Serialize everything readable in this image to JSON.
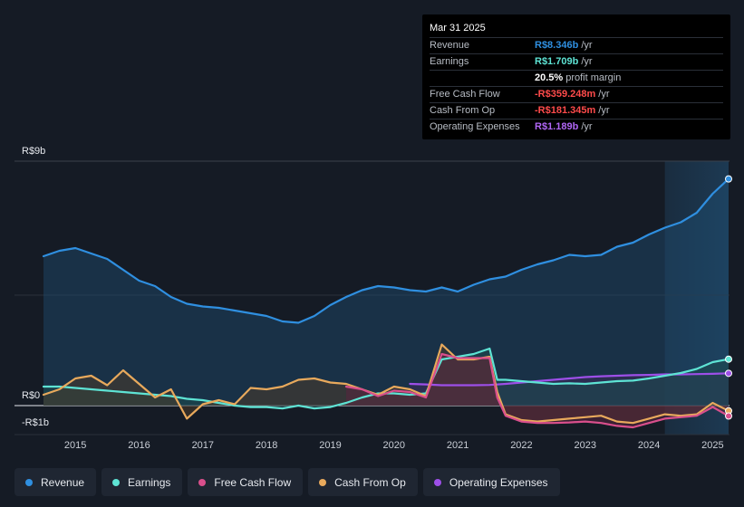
{
  "tooltip": {
    "date": "Mar 31 2025",
    "rows": [
      {
        "label": "Revenue",
        "value": "R$8.346b",
        "unit": "/yr",
        "color": "#2f8fe0"
      },
      {
        "label": "Earnings",
        "value": "R$1.709b",
        "unit": "/yr",
        "color": "#5ee3d4"
      },
      {
        "label": "",
        "value": "20.5%",
        "unit": "profit margin",
        "color": "#ffffff"
      },
      {
        "label": "Free Cash Flow",
        "value": "-R$359.248m",
        "unit": "/yr",
        "color": "#ff4b4b"
      },
      {
        "label": "Cash From Op",
        "value": "-R$181.345m",
        "unit": "/yr",
        "color": "#ff4b4b"
      },
      {
        "label": "Operating Expenses",
        "value": "R$1.189b",
        "unit": "/yr",
        "color": "#b066f5"
      }
    ]
  },
  "legend": [
    {
      "label": "Revenue",
      "color": "#2f8fe0"
    },
    {
      "label": "Earnings",
      "color": "#5ee3d4"
    },
    {
      "label": "Free Cash Flow",
      "color": "#d94f8c"
    },
    {
      "label": "Cash From Op",
      "color": "#e8a95c"
    },
    {
      "label": "Operating Expenses",
      "color": "#9d4fe8"
    }
  ],
  "chart_data": {
    "type": "line",
    "title": "",
    "xlabel": "",
    "ylabel": "",
    "ylim": [
      -1,
      9
    ],
    "ytick_labels": [
      {
        "value": 9,
        "label": "R$9b"
      },
      {
        "value": 0,
        "label": "R$0"
      },
      {
        "value": -1,
        "label": "-R$1b"
      }
    ],
    "xlim": [
      2014.5,
      2025.25
    ],
    "xtick_labels": [
      "2015",
      "2016",
      "2017",
      "2018",
      "2019",
      "2020",
      "2021",
      "2022",
      "2023",
      "2024",
      "2025"
    ],
    "xticks": [
      2015,
      2016,
      2017,
      2018,
      2019,
      2020,
      2021,
      2022,
      2023,
      2024,
      2025
    ],
    "highlight_start": 2024.25,
    "series": [
      {
        "name": "Revenue",
        "color": "#2f8fe0",
        "fill": "#1f4d70",
        "points": [
          [
            2014.5,
            5.5
          ],
          [
            2014.75,
            5.7
          ],
          [
            2015.0,
            5.8
          ],
          [
            2015.25,
            5.6
          ],
          [
            2015.5,
            5.4
          ],
          [
            2015.75,
            5.0
          ],
          [
            2016.0,
            4.6
          ],
          [
            2016.25,
            4.4
          ],
          [
            2016.5,
            4.0
          ],
          [
            2016.75,
            3.75
          ],
          [
            2017.0,
            3.65
          ],
          [
            2017.25,
            3.6
          ],
          [
            2017.5,
            3.5
          ],
          [
            2017.75,
            3.4
          ],
          [
            2018.0,
            3.3
          ],
          [
            2018.25,
            3.1
          ],
          [
            2018.5,
            3.05
          ],
          [
            2018.75,
            3.3
          ],
          [
            2019.0,
            3.7
          ],
          [
            2019.25,
            4.0
          ],
          [
            2019.5,
            4.25
          ],
          [
            2019.75,
            4.4
          ],
          [
            2020.0,
            4.35
          ],
          [
            2020.25,
            4.25
          ],
          [
            2020.5,
            4.2
          ],
          [
            2020.75,
            4.35
          ],
          [
            2021.0,
            4.2
          ],
          [
            2021.25,
            4.45
          ],
          [
            2021.5,
            4.65
          ],
          [
            2021.75,
            4.75
          ],
          [
            2022.0,
            5.0
          ],
          [
            2022.25,
            5.2
          ],
          [
            2022.5,
            5.35
          ],
          [
            2022.75,
            5.55
          ],
          [
            2023.0,
            5.5
          ],
          [
            2023.25,
            5.55
          ],
          [
            2023.5,
            5.85
          ],
          [
            2023.75,
            6.0
          ],
          [
            2024.0,
            6.3
          ],
          [
            2024.25,
            6.55
          ],
          [
            2024.5,
            6.75
          ],
          [
            2024.75,
            7.1
          ],
          [
            2025.0,
            7.8
          ],
          [
            2025.25,
            8.346
          ]
        ]
      },
      {
        "name": "Earnings",
        "color": "#5ee3d4",
        "fill": "#1c4a4c",
        "points": [
          [
            2014.5,
            0.7
          ],
          [
            2014.75,
            0.7
          ],
          [
            2015.0,
            0.65
          ],
          [
            2015.25,
            0.6
          ],
          [
            2015.5,
            0.55
          ],
          [
            2015.75,
            0.5
          ],
          [
            2016.0,
            0.45
          ],
          [
            2016.25,
            0.4
          ],
          [
            2016.5,
            0.35
          ],
          [
            2016.75,
            0.25
          ],
          [
            2017.0,
            0.2
          ],
          [
            2017.25,
            0.1
          ],
          [
            2017.5,
            0.0
          ],
          [
            2017.75,
            -0.05
          ],
          [
            2018.0,
            -0.05
          ],
          [
            2018.25,
            -0.1
          ],
          [
            2018.5,
            0.0
          ],
          [
            2018.75,
            -0.1
          ],
          [
            2019.0,
            -0.05
          ],
          [
            2019.25,
            0.1
          ],
          [
            2019.5,
            0.3
          ],
          [
            2019.75,
            0.45
          ],
          [
            2020.0,
            0.45
          ],
          [
            2020.25,
            0.4
          ],
          [
            2020.5,
            0.45
          ],
          [
            2020.75,
            1.7
          ],
          [
            2021.0,
            1.8
          ],
          [
            2021.25,
            1.9
          ],
          [
            2021.5,
            2.1
          ],
          [
            2021.62,
            0.95
          ],
          [
            2021.75,
            0.95
          ],
          [
            2022.0,
            0.9
          ],
          [
            2022.25,
            0.85
          ],
          [
            2022.5,
            0.8
          ],
          [
            2022.75,
            0.82
          ],
          [
            2023.0,
            0.8
          ],
          [
            2023.25,
            0.85
          ],
          [
            2023.5,
            0.9
          ],
          [
            2023.75,
            0.92
          ],
          [
            2024.0,
            1.0
          ],
          [
            2024.25,
            1.1
          ],
          [
            2024.5,
            1.2
          ],
          [
            2024.75,
            1.35
          ],
          [
            2025.0,
            1.6
          ],
          [
            2025.25,
            1.709
          ]
        ]
      },
      {
        "name": "Cash From Op",
        "color": "#e8a95c",
        "fill": "#4a3a2a",
        "points": [
          [
            2014.5,
            0.4
          ],
          [
            2014.75,
            0.6
          ],
          [
            2015.0,
            1.0
          ],
          [
            2015.25,
            1.1
          ],
          [
            2015.5,
            0.75
          ],
          [
            2015.75,
            1.3
          ],
          [
            2016.0,
            0.8
          ],
          [
            2016.25,
            0.3
          ],
          [
            2016.5,
            0.6
          ],
          [
            2016.75,
            -0.45
          ],
          [
            2017.0,
            0.05
          ],
          [
            2017.25,
            0.2
          ],
          [
            2017.5,
            0.05
          ],
          [
            2017.75,
            0.65
          ],
          [
            2018.0,
            0.6
          ],
          [
            2018.25,
            0.7
          ],
          [
            2018.5,
            0.95
          ],
          [
            2018.75,
            1.0
          ],
          [
            2019.0,
            0.85
          ],
          [
            2019.25,
            0.8
          ],
          [
            2019.5,
            0.6
          ],
          [
            2019.75,
            0.4
          ],
          [
            2020.0,
            0.7
          ],
          [
            2020.25,
            0.6
          ],
          [
            2020.5,
            0.35
          ],
          [
            2020.75,
            2.25
          ],
          [
            2021.0,
            1.7
          ],
          [
            2021.25,
            1.7
          ],
          [
            2021.5,
            1.8
          ],
          [
            2021.62,
            0.5
          ],
          [
            2021.75,
            -0.3
          ],
          [
            2022.0,
            -0.5
          ],
          [
            2022.25,
            -0.55
          ],
          [
            2022.5,
            -0.5
          ],
          [
            2022.75,
            -0.45
          ],
          [
            2023.0,
            -0.4
          ],
          [
            2023.25,
            -0.35
          ],
          [
            2023.5,
            -0.55
          ],
          [
            2023.75,
            -0.6
          ],
          [
            2024.0,
            -0.45
          ],
          [
            2024.25,
            -0.3
          ],
          [
            2024.5,
            -0.35
          ],
          [
            2024.75,
            -0.3
          ],
          [
            2025.0,
            0.1
          ],
          [
            2025.25,
            -0.181
          ]
        ]
      },
      {
        "name": "Free Cash Flow",
        "color": "#d94f8c",
        "fill": "#5a2540",
        "points": [
          [
            2019.25,
            0.7
          ],
          [
            2019.5,
            0.6
          ],
          [
            2019.75,
            0.35
          ],
          [
            2020.0,
            0.55
          ],
          [
            2020.25,
            0.5
          ],
          [
            2020.5,
            0.3
          ],
          [
            2020.75,
            1.9
          ],
          [
            2021.0,
            1.75
          ],
          [
            2021.25,
            1.75
          ],
          [
            2021.5,
            1.75
          ],
          [
            2021.62,
            0.3
          ],
          [
            2021.75,
            -0.35
          ],
          [
            2022.0,
            -0.55
          ],
          [
            2022.25,
            -0.6
          ],
          [
            2022.5,
            -0.6
          ],
          [
            2022.75,
            -0.58
          ],
          [
            2023.0,
            -0.55
          ],
          [
            2023.25,
            -0.6
          ],
          [
            2023.5,
            -0.7
          ],
          [
            2023.75,
            -0.75
          ],
          [
            2024.0,
            -0.6
          ],
          [
            2024.25,
            -0.45
          ],
          [
            2024.5,
            -0.4
          ],
          [
            2024.75,
            -0.35
          ],
          [
            2025.0,
            -0.05
          ],
          [
            2025.25,
            -0.359
          ]
        ]
      },
      {
        "name": "Operating Expenses",
        "color": "#9d4fe8",
        "fill": "#3a2a5a",
        "points": [
          [
            2020.25,
            0.8
          ],
          [
            2020.5,
            0.78
          ],
          [
            2020.75,
            0.75
          ],
          [
            2021.0,
            0.75
          ],
          [
            2021.25,
            0.75
          ],
          [
            2021.5,
            0.76
          ],
          [
            2021.75,
            0.8
          ],
          [
            2022.0,
            0.85
          ],
          [
            2022.25,
            0.9
          ],
          [
            2022.5,
            0.95
          ],
          [
            2022.75,
            1.0
          ],
          [
            2023.0,
            1.05
          ],
          [
            2023.25,
            1.08
          ],
          [
            2023.5,
            1.1
          ],
          [
            2023.75,
            1.12
          ],
          [
            2024.0,
            1.13
          ],
          [
            2024.25,
            1.15
          ],
          [
            2024.5,
            1.15
          ],
          [
            2024.75,
            1.16
          ],
          [
            2025.0,
            1.17
          ],
          [
            2025.25,
            1.189
          ]
        ]
      }
    ]
  }
}
